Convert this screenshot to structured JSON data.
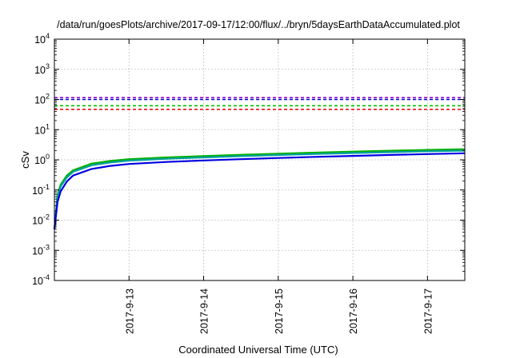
{
  "chart_data": {
    "type": "line",
    "title": "/data/run/goesPlots/archive/2017-09-17/12:00/flux/../bryn/5daysEarthDataAccumulated.plot",
    "xlabel": "Coordinated Universal Time (UTC)",
    "ylabel": "cSv",
    "y_scale": "log",
    "ylim": [
      0.0001,
      10000
    ],
    "xlim": [
      "2017-09-12T00:00",
      "2017-09-17T12:00"
    ],
    "grid": true,
    "y_ticks": [
      {
        "base": "10",
        "exp": "-4"
      },
      {
        "base": "10",
        "exp": "-3"
      },
      {
        "base": "10",
        "exp": "-2"
      },
      {
        "base": "10",
        "exp": "-1"
      },
      {
        "base": "10",
        "exp": "0"
      },
      {
        "base": "10",
        "exp": "1"
      },
      {
        "base": "10",
        "exp": "2"
      },
      {
        "base": "10",
        "exp": "3"
      },
      {
        "base": "10",
        "exp": "4"
      }
    ],
    "x_ticks": [
      "2017-9-13",
      "2017-9-14",
      "2017-9-15",
      "2017-9-16",
      "2017-9-17"
    ],
    "reference_lines": [
      {
        "value": 115,
        "color": "#9400d3",
        "style": "dashed"
      },
      {
        "value": 100,
        "color": "#0000cc",
        "style": "dashed"
      },
      {
        "value": 62,
        "color": "#00c000",
        "style": "dashed"
      },
      {
        "value": 47,
        "color": "#e00000",
        "style": "dashed"
      }
    ],
    "series": [
      {
        "color": "#00b000",
        "x": [
          "2017-09-12T00:00",
          "2017-09-12T01:00",
          "2017-09-12T02:00",
          "2017-09-12T04:00",
          "2017-09-12T06:00",
          "2017-09-12T12:00",
          "2017-09-12T18:00",
          "2017-09-13T00:00",
          "2017-09-13T12:00",
          "2017-09-14T00:00",
          "2017-09-14T12:00",
          "2017-09-15T00:00",
          "2017-09-15T12:00",
          "2017-09-16T00:00",
          "2017-09-16T12:00",
          "2017-09-17T00:00",
          "2017-09-17T12:00"
        ],
        "values": [
          0.005,
          0.07,
          0.15,
          0.3,
          0.45,
          0.75,
          0.92,
          1.05,
          1.2,
          1.33,
          1.47,
          1.6,
          1.73,
          1.87,
          2.0,
          2.13,
          2.25
        ]
      },
      {
        "color": "#00a0a0",
        "x": [
          "2017-09-12T00:00",
          "2017-09-12T01:00",
          "2017-09-12T02:00",
          "2017-09-12T04:00",
          "2017-09-12T06:00",
          "2017-09-12T12:00",
          "2017-09-12T18:00",
          "2017-09-13T00:00",
          "2017-09-13T12:00",
          "2017-09-14T00:00",
          "2017-09-14T12:00",
          "2017-09-15T00:00",
          "2017-09-15T12:00",
          "2017-09-16T00:00",
          "2017-09-16T12:00",
          "2017-09-17T00:00",
          "2017-09-17T12:00"
        ],
        "values": [
          0.005,
          0.06,
          0.13,
          0.26,
          0.4,
          0.66,
          0.82,
          0.94,
          1.08,
          1.2,
          1.32,
          1.44,
          1.56,
          1.68,
          1.8,
          1.92,
          2.02
        ]
      },
      {
        "color": "#0000e0",
        "x": [
          "2017-09-12T00:00",
          "2017-09-12T01:00",
          "2017-09-12T02:00",
          "2017-09-12T04:00",
          "2017-09-12T06:00",
          "2017-09-12T12:00",
          "2017-09-12T18:00",
          "2017-09-13T00:00",
          "2017-09-13T12:00",
          "2017-09-14T00:00",
          "2017-09-14T12:00",
          "2017-09-15T00:00",
          "2017-09-15T12:00",
          "2017-09-16T00:00",
          "2017-09-16T12:00",
          "2017-09-17T00:00",
          "2017-09-17T12:00"
        ],
        "values": [
          0.005,
          0.04,
          0.09,
          0.19,
          0.3,
          0.5,
          0.63,
          0.73,
          0.85,
          0.95,
          1.05,
          1.15,
          1.25,
          1.35,
          1.45,
          1.55,
          1.65
        ]
      }
    ]
  }
}
